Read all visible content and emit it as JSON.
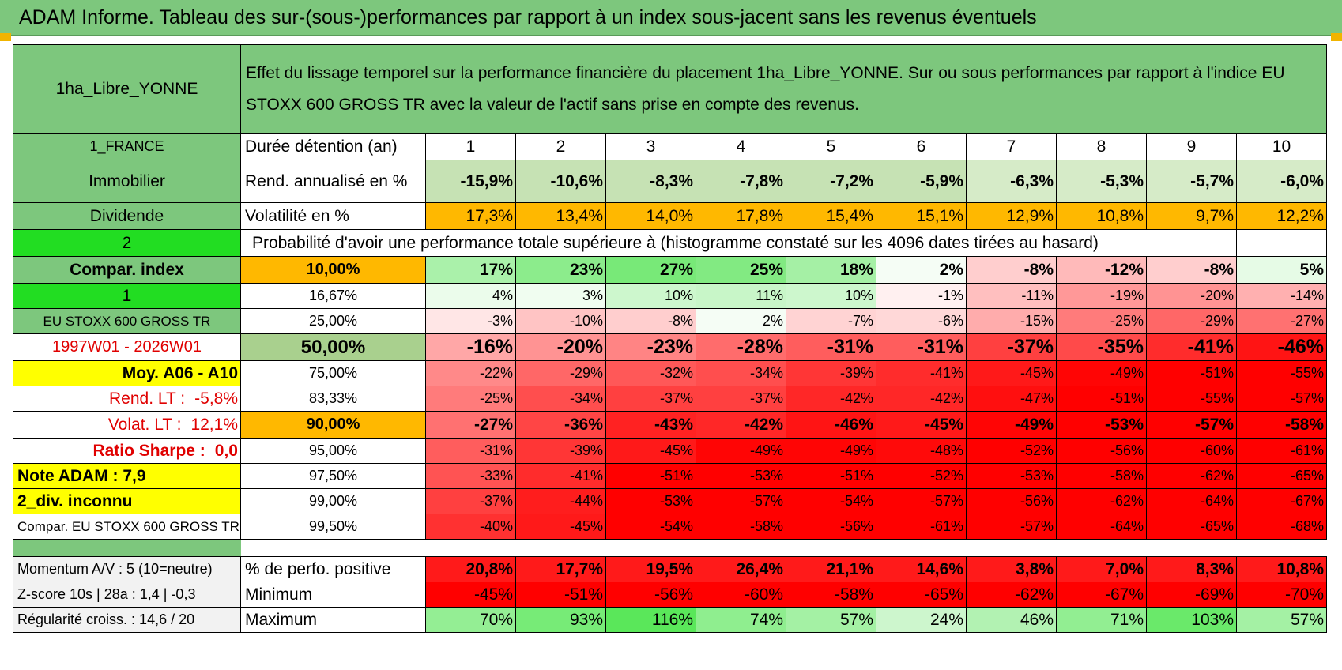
{
  "title": "ADAM Informe. Tableau des sur-(sous-)performances par rapport à un index sous-jacent sans les revenus éventuels",
  "header": {
    "asset_name": "1ha_Libre_YONNE",
    "description": "Effet du lissage temporel sur la performance financière du placement 1ha_Libre_YONNE. Sur ou sous performances par rapport à l'indice EU STOXX 600 GROSS TR avec la valeur de l'actif sans prise en compte des revenus."
  },
  "left_labels": {
    "country": "1_FRANCE",
    "category": "Immobilier",
    "dividend": "Dividende",
    "two": "2",
    "compar_index": "Compar. index",
    "one": "1",
    "index_name": "EU STOXX 600 GROSS TR",
    "period": "1997W01 - 2026W01",
    "moy": "Moy. A06 - A10",
    "rend_lt_label": "Rend. LT :",
    "rend_lt_value": "-5,8%",
    "volat_lt_label": "Volat. LT :",
    "volat_lt_value": "12,1%",
    "sharpe_label": "Ratio Sharpe :",
    "sharpe_value": "0,0",
    "note_adam": "Note ADAM : 7,9",
    "div_inconnu": "2_div. inconnu",
    "compar_eu": "Compar. EU STOXX 600 GROSS TR",
    "momentum": "Momentum A/V : 5 (10=neutre)",
    "zscore": "Z-score 10s | 28a : 1,4 | -0,3",
    "regularite": "Régularité croiss. : 14,6 / 20"
  },
  "row_labels": {
    "duree": "Durée détention (an)",
    "rend": "Rend. annualisé en %",
    "volat": "Volatilité en %",
    "proba": "Probabilité d'avoir une performance totale supérieure à (histogramme constaté sur les 4096 dates tirées au hasard)",
    "perf_pos": "% de perfo. positive",
    "minimum": "Minimum",
    "maximum": "Maximum"
  },
  "years": [
    "1",
    "2",
    "3",
    "4",
    "5",
    "6",
    "7",
    "8",
    "9",
    "10"
  ],
  "rend": [
    "-15,9%",
    "-10,6%",
    "-8,3%",
    "-7,8%",
    "-7,2%",
    "-5,9%",
    "-6,3%",
    "-5,3%",
    "-5,7%",
    "-6,0%"
  ],
  "volat": [
    "17,3%",
    "13,4%",
    "14,0%",
    "17,8%",
    "15,4%",
    "15,1%",
    "12,9%",
    "10,8%",
    "9,7%",
    "12,2%"
  ],
  "percentile_rows": [
    {
      "pct": "10,00%",
      "values": [
        "17%",
        "23%",
        "27%",
        "25%",
        "18%",
        "2%",
        "-8%",
        "-12%",
        "-8%",
        "5%"
      ],
      "bold": true,
      "size": 21
    },
    {
      "pct": "16,67%",
      "values": [
        "4%",
        "3%",
        "10%",
        "11%",
        "10%",
        "-1%",
        "-11%",
        "-19%",
        "-20%",
        "-14%"
      ],
      "bold": false,
      "size": 18
    },
    {
      "pct": "25,00%",
      "values": [
        "-3%",
        "-10%",
        "-8%",
        "2%",
        "-7%",
        "-6%",
        "-15%",
        "-25%",
        "-29%",
        "-27%"
      ],
      "bold": false,
      "size": 18
    },
    {
      "pct": "50,00%",
      "values": [
        "-16%",
        "-20%",
        "-23%",
        "-28%",
        "-31%",
        "-31%",
        "-37%",
        "-35%",
        "-41%",
        "-46%"
      ],
      "bold": true,
      "size": 25
    },
    {
      "pct": "75,00%",
      "values": [
        "-22%",
        "-29%",
        "-32%",
        "-34%",
        "-39%",
        "-41%",
        "-45%",
        "-49%",
        "-51%",
        "-55%"
      ],
      "bold": false,
      "size": 18
    },
    {
      "pct": "83,33%",
      "values": [
        "-25%",
        "-34%",
        "-37%",
        "-37%",
        "-42%",
        "-42%",
        "-47%",
        "-51%",
        "-55%",
        "-57%"
      ],
      "bold": false,
      "size": 18
    },
    {
      "pct": "90,00%",
      "values": [
        "-27%",
        "-36%",
        "-43%",
        "-42%",
        "-46%",
        "-45%",
        "-49%",
        "-53%",
        "-57%",
        "-58%"
      ],
      "bold": true,
      "size": 21
    },
    {
      "pct": "95,00%",
      "values": [
        "-31%",
        "-39%",
        "-45%",
        "-49%",
        "-49%",
        "-48%",
        "-52%",
        "-56%",
        "-60%",
        "-61%"
      ],
      "bold": false,
      "size": 18
    },
    {
      "pct": "97,50%",
      "values": [
        "-33%",
        "-41%",
        "-51%",
        "-53%",
        "-51%",
        "-52%",
        "-53%",
        "-58%",
        "-62%",
        "-65%"
      ],
      "bold": false,
      "size": 18
    },
    {
      "pct": "99,00%",
      "values": [
        "-37%",
        "-44%",
        "-53%",
        "-57%",
        "-54%",
        "-57%",
        "-56%",
        "-62%",
        "-64%",
        "-67%"
      ],
      "bold": false,
      "size": 18
    },
    {
      "pct": "99,50%",
      "values": [
        "-40%",
        "-45%",
        "-54%",
        "-58%",
        "-56%",
        "-61%",
        "-57%",
        "-64%",
        "-65%",
        "-68%"
      ],
      "bold": false,
      "size": 18
    }
  ],
  "perf_pos": [
    "20,8%",
    "17,7%",
    "19,5%",
    "26,4%",
    "21,1%",
    "14,6%",
    "3,8%",
    "7,0%",
    "8,3%",
    "10,8%"
  ],
  "minimum": [
    "-45%",
    "-51%",
    "-56%",
    "-60%",
    "-58%",
    "-65%",
    "-62%",
    "-67%",
    "-69%",
    "-70%"
  ],
  "maximum": [
    "70%",
    "93%",
    "116%",
    "74%",
    "57%",
    "24%",
    "46%",
    "71%",
    "103%",
    "57%"
  ],
  "colors": {
    "header_green": "#7dc77d",
    "bright_green": "#22dd22",
    "yellow": "#ffff00",
    "orange": "#ffb800",
    "red": "#ff0000",
    "label_red": "#e00000"
  }
}
